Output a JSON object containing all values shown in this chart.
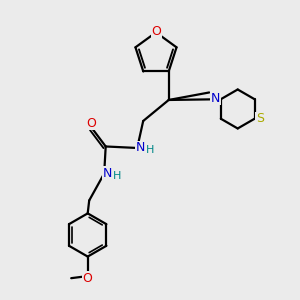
{
  "background_color": "#ebebeb",
  "atom_colors": {
    "C": "#000000",
    "N": "#0000cc",
    "O": "#dd0000",
    "S": "#aaaa00",
    "H": "#008888"
  },
  "bond_color": "#000000",
  "figsize": [
    3.0,
    3.0
  ],
  "dpi": 100
}
